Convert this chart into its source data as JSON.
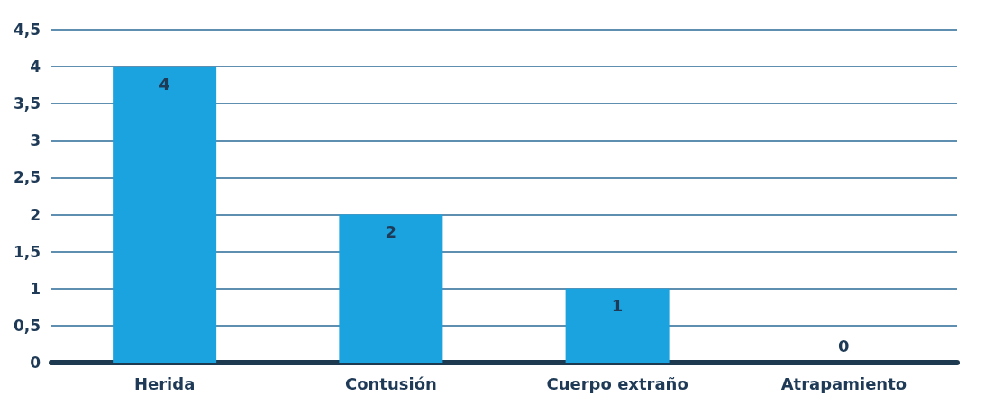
{
  "chart_data": {
    "type": "bar",
    "categories": [
      "Herida",
      "Contusión",
      "Cuerpo extraño",
      "Atrapamiento"
    ],
    "values": [
      4,
      2,
      1,
      0
    ],
    "color": "#1ba3e0",
    "ylim": [
      0,
      4.5
    ],
    "yticks": [
      0,
      {
        "value": 0.5,
        "label": "0,5"
      },
      1,
      {
        "value": 1.5,
        "label": "1,5"
      },
      2,
      {
        "value": 2.5,
        "label": "2,5"
      },
      3,
      {
        "value": 3.5,
        "label": "3,5"
      },
      4,
      {
        "value": 4.5,
        "label": "4,5"
      }
    ],
    "grid": "y",
    "data_labels": true
  }
}
